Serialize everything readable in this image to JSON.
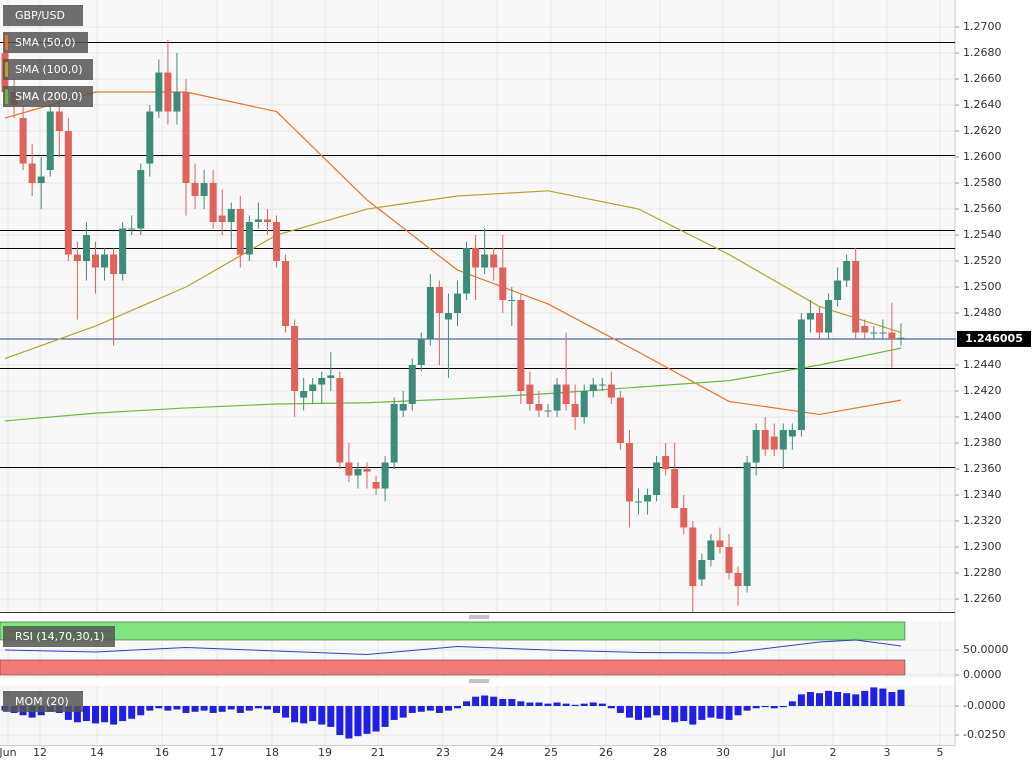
{
  "chart_data": [
    {
      "type": "candlestick",
      "title": "GBP/USD",
      "up_color": "#3d8c7a",
      "down_color": "#e0625c",
      "ylim": [
        1.225,
        1.27208
      ],
      "yticks": [
        {
          "value": 1.226,
          "label": "1.2260"
        },
        {
          "value": 1.228,
          "label": "1.2280"
        },
        {
          "value": 1.23,
          "label": "1.2300"
        },
        {
          "value": 1.232,
          "label": "1.2320"
        },
        {
          "value": 1.234,
          "label": "1.2340"
        },
        {
          "value": 1.236,
          "label": "1.2360"
        },
        {
          "value": 1.238,
          "label": "1.2380"
        },
        {
          "value": 1.24,
          "label": "1.2400"
        },
        {
          "value": 1.242,
          "label": "1.2420"
        },
        {
          "value": 1.244,
          "label": "1.2440"
        },
        {
          "value": 1.246,
          "label": "1.2460"
        },
        {
          "value": 1.248,
          "label": "1.2480"
        },
        {
          "value": 1.25,
          "label": "1.2500"
        },
        {
          "value": 1.252,
          "label": "1.2520"
        },
        {
          "value": 1.254,
          "label": "1.2540"
        },
        {
          "value": 1.256,
          "label": "1.2560"
        },
        {
          "value": 1.258,
          "label": "1.2580"
        },
        {
          "value": 1.26,
          "label": "1.2600"
        },
        {
          "value": 1.262,
          "label": "1.2620"
        },
        {
          "value": 1.264,
          "label": "1.2640"
        },
        {
          "value": 1.266,
          "label": "1.2660"
        },
        {
          "value": 1.268,
          "label": "1.2680"
        },
        {
          "value": 1.27,
          "label": "1.2700"
        }
      ],
      "grid": true,
      "x_labels": [
        "Jun",
        "12",
        "14",
        "16",
        "17",
        "18",
        "19",
        "21",
        "23",
        "24",
        "25",
        "26",
        "28",
        "30",
        "Jul",
        "2",
        "3",
        "5"
      ],
      "levels": [
        1.26885,
        1.26015,
        1.25438,
        1.253,
        1.24377,
        1.23615
      ],
      "level_color": "#000000",
      "last_price": 1.246005,
      "last_price_color": "#1f3f8f",
      "candles": [
        [
          1.268,
          1.269,
          1.264,
          1.265
        ],
        [
          1.265,
          1.266,
          1.263,
          1.264
        ],
        [
          1.263,
          1.264,
          1.259,
          1.2595
        ],
        [
          1.2595,
          1.261,
          1.257,
          1.258
        ],
        [
          1.258,
          1.26,
          1.256,
          1.2585
        ],
        [
          1.259,
          1.264,
          1.2585,
          1.2635
        ],
        [
          1.2635,
          1.265,
          1.26,
          1.262
        ],
        [
          1.262,
          1.263,
          1.252,
          1.2525
        ],
        [
          1.2525,
          1.2535,
          1.2475,
          1.252
        ],
        [
          1.252,
          1.255,
          1.2505,
          1.254
        ],
        [
          1.2525,
          1.2535,
          1.2495,
          1.2515
        ],
        [
          1.2515,
          1.253,
          1.2505,
          1.2525
        ],
        [
          1.2525,
          1.253,
          1.2455,
          1.251
        ],
        [
          1.251,
          1.255,
          1.2505,
          1.2545
        ],
        [
          1.2545,
          1.2555,
          1.254,
          1.2545
        ],
        [
          1.2545,
          1.2595,
          1.254,
          1.259
        ],
        [
          1.2595,
          1.264,
          1.2585,
          1.2635
        ],
        [
          1.2635,
          1.2675,
          1.263,
          1.2665
        ],
        [
          1.2665,
          1.269,
          1.2625,
          1.2635
        ],
        [
          1.2635,
          1.268,
          1.2625,
          1.265
        ],
        [
          1.265,
          1.266,
          1.2555,
          1.258
        ],
        [
          1.258,
          1.2595,
          1.256,
          1.257
        ],
        [
          1.257,
          1.259,
          1.256,
          1.258
        ],
        [
          1.258,
          1.259,
          1.2545,
          1.255
        ],
        [
          1.2555,
          1.2575,
          1.254,
          1.255
        ],
        [
          1.255,
          1.2565,
          1.253,
          1.256
        ],
        [
          1.256,
          1.257,
          1.2515,
          1.2525
        ],
        [
          1.2525,
          1.2555,
          1.252,
          1.255
        ],
        [
          1.255,
          1.2565,
          1.2545,
          1.2552
        ],
        [
          1.2552,
          1.256,
          1.254,
          1.255
        ],
        [
          1.255,
          1.2555,
          1.2515,
          1.252
        ],
        [
          1.252,
          1.2525,
          1.2465,
          1.247
        ],
        [
          1.247,
          1.2475,
          1.24,
          1.242
        ],
        [
          1.2415,
          1.243,
          1.2405,
          1.242
        ],
        [
          1.242,
          1.243,
          1.241,
          1.2425
        ],
        [
          1.2425,
          1.2435,
          1.241,
          1.243
        ],
        [
          1.243,
          1.245,
          1.242,
          1.2432
        ],
        [
          1.243,
          1.2435,
          1.236,
          1.2365
        ],
        [
          1.2365,
          1.238,
          1.235,
          1.2355
        ],
        [
          1.2355,
          1.2365,
          1.2345,
          1.236
        ],
        [
          1.236,
          1.2365,
          1.2345,
          1.2358
        ],
        [
          1.235,
          1.2355,
          1.234,
          1.2345
        ],
        [
          1.2345,
          1.237,
          1.2335,
          1.2365
        ],
        [
          1.2365,
          1.2415,
          1.236,
          1.241
        ],
        [
          1.2405,
          1.242,
          1.24,
          1.241
        ],
        [
          1.241,
          1.2445,
          1.2405,
          1.244
        ],
        [
          1.244,
          1.2465,
          1.2435,
          1.246
        ],
        [
          1.246,
          1.251,
          1.2455,
          1.25
        ],
        [
          1.25,
          1.2505,
          1.244,
          1.248
        ],
        [
          1.2475,
          1.2495,
          1.243,
          1.248
        ],
        [
          1.248,
          1.2505,
          1.247,
          1.2495
        ],
        [
          1.2495,
          1.2535,
          1.249,
          1.253
        ],
        [
          1.253,
          1.254,
          1.249,
          1.2515
        ],
        [
          1.2515,
          1.2545,
          1.251,
          1.2525
        ],
        [
          1.2525,
          1.253,
          1.2505,
          1.2515
        ],
        [
          1.2515,
          1.254,
          1.248,
          1.249
        ],
        [
          1.249,
          1.25,
          1.247,
          1.249
        ],
        [
          1.249,
          1.2495,
          1.241,
          1.242
        ],
        [
          1.2425,
          1.2435,
          1.2405,
          1.241
        ],
        [
          1.241,
          1.242,
          1.24,
          1.2405
        ],
        [
          1.2405,
          1.241,
          1.24,
          1.2405
        ],
        [
          1.2405,
          1.243,
          1.24,
          1.2425
        ],
        [
          1.2425,
          1.2465,
          1.2405,
          1.241
        ],
        [
          1.241,
          1.2425,
          1.239,
          1.24
        ],
        [
          1.24,
          1.2425,
          1.2395,
          1.242
        ],
        [
          1.242,
          1.243,
          1.2415,
          1.2425
        ],
        [
          1.2425,
          1.243,
          1.242,
          1.2425
        ],
        [
          1.2425,
          1.2435,
          1.241,
          1.2415
        ],
        [
          1.2415,
          1.242,
          1.2375,
          1.238
        ],
        [
          1.238,
          1.239,
          1.2315,
          1.2335
        ],
        [
          1.2335,
          1.2345,
          1.2325,
          1.2335
        ],
        [
          1.2335,
          1.2345,
          1.2325,
          1.234
        ],
        [
          1.234,
          1.237,
          1.2335,
          1.2365
        ],
        [
          1.237,
          1.238,
          1.2355,
          1.236
        ],
        [
          1.236,
          1.238,
          1.233,
          1.233
        ],
        [
          1.233,
          1.234,
          1.231,
          1.2315
        ],
        [
          1.2315,
          1.232,
          1.225,
          1.227
        ],
        [
          1.2275,
          1.2295,
          1.227,
          1.229
        ],
        [
          1.229,
          1.231,
          1.2285,
          1.2305
        ],
        [
          1.2305,
          1.2315,
          1.2295,
          1.23
        ],
        [
          1.23,
          1.231,
          1.2275,
          1.228
        ],
        [
          1.228,
          1.2285,
          1.2255,
          1.227
        ],
        [
          1.227,
          1.237,
          1.2265,
          1.2365
        ],
        [
          1.2365,
          1.2395,
          1.2355,
          1.239
        ],
        [
          1.239,
          1.24,
          1.237,
          1.2375
        ],
        [
          1.2385,
          1.2395,
          1.237,
          1.2375
        ],
        [
          1.2375,
          1.2395,
          1.236,
          1.239
        ],
        [
          1.2385,
          1.2395,
          1.2375,
          1.239
        ],
        [
          1.239,
          1.248,
          1.2385,
          1.2475
        ],
        [
          1.2475,
          1.249,
          1.2465,
          1.248
        ],
        [
          1.248,
          1.2485,
          1.246,
          1.2465
        ],
        [
          1.2465,
          1.2495,
          1.246,
          1.249
        ],
        [
          1.249,
          1.2515,
          1.2485,
          1.2505
        ],
        [
          1.2505,
          1.2525,
          1.25,
          1.252
        ],
        [
          1.252,
          1.253,
          1.246,
          1.2465
        ],
        [
          1.247,
          1.2475,
          1.246,
          1.2465
        ],
        [
          1.2465,
          1.247,
          1.246,
          1.2465
        ],
        [
          1.2465,
          1.2475,
          1.246,
          1.2465
        ],
        [
          1.2465,
          1.2488,
          1.2438,
          1.246
        ],
        [
          1.246,
          1.2472,
          1.2455,
          1.2461
        ]
      ],
      "series": [
        {
          "name": "SMA (50,0)",
          "color": "#e8732e",
          "x": [
            0,
            10,
            20,
            30,
            40,
            50,
            60,
            70,
            80,
            90,
            99
          ],
          "values": [
            1.263,
            1.265,
            1.265,
            1.2635,
            1.2567,
            1.2513,
            1.2487,
            1.245,
            1.2412,
            1.2402,
            1.2413
          ]
        },
        {
          "name": "SMA (100,0)",
          "color": "#b3a32c",
          "x": [
            0,
            10,
            20,
            30,
            40,
            50,
            60,
            70,
            80,
            90,
            99
          ],
          "values": [
            1.2445,
            1.247,
            1.25,
            1.254,
            1.256,
            1.257,
            1.2574,
            1.256,
            1.2525,
            1.2485,
            1.2465
          ]
        },
        {
          "name": "SMA (200,0)",
          "color": "#6cb83c",
          "x": [
            0,
            10,
            20,
            30,
            40,
            50,
            60,
            70,
            80,
            90,
            99
          ],
          "values": [
            1.2397,
            1.2403,
            1.2407,
            1.241,
            1.2411,
            1.2414,
            1.2418,
            1.2423,
            1.2428,
            1.244,
            1.2453
          ]
        }
      ]
    },
    {
      "type": "line",
      "title": "RSI (14,70,30,1)",
      "color": "#2a3fd0",
      "x": [
        0,
        10,
        20,
        30,
        40,
        50,
        60,
        70,
        80,
        90,
        94,
        99
      ],
      "values": [
        50,
        46,
        55,
        48,
        41,
        57,
        50,
        45,
        44,
        66,
        70,
        58
      ],
      "ylim": [
        -6,
        108
      ],
      "yticks": [
        {
          "value": 50,
          "label": "50.0000"
        },
        {
          "value": 0,
          "label": "0.0000"
        }
      ],
      "levels": [
        70,
        30
      ],
      "level_colors": [
        "#7fe57f",
        "#f47a7a"
      ]
    },
    {
      "type": "bar",
      "title": "MOM (20)",
      "color": "#1f1fe6",
      "values": [
        -0.004,
        -0.006,
        -0.008,
        -0.01,
        -0.008,
        -0.005,
        -0.006,
        -0.012,
        -0.014,
        -0.013,
        -0.015,
        -0.014,
        -0.016,
        -0.013,
        -0.011,
        -0.008,
        -0.004,
        -0.002,
        -0.004,
        -0.003,
        -0.006,
        -0.005,
        -0.004,
        -0.006,
        -0.005,
        -0.003,
        -0.006,
        -0.004,
        -0.002,
        -0.003,
        -0.006,
        -0.01,
        -0.014,
        -0.015,
        -0.013,
        -0.016,
        -0.018,
        -0.025,
        -0.028,
        -0.026,
        -0.024,
        -0.022,
        -0.018,
        -0.012,
        -0.01,
        -0.006,
        -0.005,
        -0.004,
        -0.006,
        -0.004,
        -0.002,
        0.004,
        0.008,
        0.009,
        0.008,
        0.006,
        0.006,
        0.004,
        0.003,
        0.003,
        0.002,
        0.003,
        0.002,
        0.001,
        0.002,
        0.003,
        0.002,
        -0.002,
        -0.006,
        -0.01,
        -0.012,
        -0.01,
        -0.008,
        -0.012,
        -0.014,
        -0.013,
        -0.016,
        -0.012,
        -0.01,
        -0.011,
        -0.012,
        -0.008,
        -0.004,
        -0.002,
        -0.001,
        -0.002,
        -0.001,
        0.004,
        0.01,
        0.012,
        0.011,
        0.013,
        0.012,
        0.011,
        0.01,
        0.013,
        0.016,
        0.015,
        0.012,
        0.014
      ],
      "ylim": [
        -0.0336,
        0.0172
      ],
      "yticks": [
        {
          "value": 0,
          "label": "-0.0000"
        },
        {
          "value": -0.025,
          "label": "-0.0250"
        }
      ]
    }
  ]
}
